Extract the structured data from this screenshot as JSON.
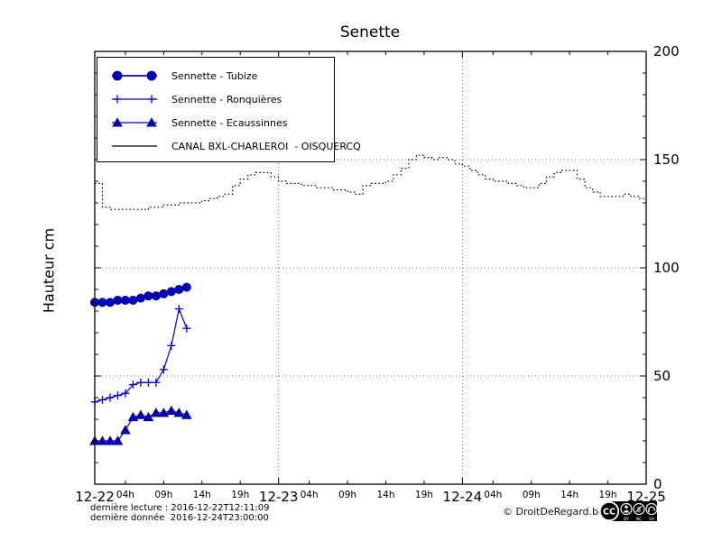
{
  "chart_data": {
    "type": "line",
    "title": "Senette",
    "ylabel": "Hauteur cm",
    "ylim": [
      0,
      200
    ],
    "xlim_hours": [
      0,
      72
    ],
    "grid": true,
    "legend_position": "upper-left",
    "accent_blue": "#0000cc",
    "y_major_ticks": [
      0,
      50,
      100,
      150,
      200
    ],
    "y_minor_step": 10,
    "grid_y_values": [
      50,
      100,
      150
    ],
    "grid_x_hours": [
      24,
      48
    ],
    "x_day_ticks": [
      {
        "label": "12-22",
        "hour": 0
      },
      {
        "label": "12-23",
        "hour": 24
      },
      {
        "label": "12-24",
        "hour": 48
      },
      {
        "label": "12-25",
        "hour": 72
      }
    ],
    "x_hour_ticks": [
      {
        "label": "04h",
        "hour": 4
      },
      {
        "label": "09h",
        "hour": 9
      },
      {
        "label": "14h",
        "hour": 14
      },
      {
        "label": "19h",
        "hour": 19
      },
      {
        "label": "04h",
        "hour": 28
      },
      {
        "label": "09h",
        "hour": 33
      },
      {
        "label": "14h",
        "hour": 38
      },
      {
        "label": "19h",
        "hour": 43
      },
      {
        "label": "04h",
        "hour": 52
      },
      {
        "label": "09h",
        "hour": 57
      },
      {
        "label": "14h",
        "hour": 62
      },
      {
        "label": "19h",
        "hour": 67
      }
    ],
    "series": [
      {
        "name": "Sennette - Tubize",
        "marker": "circle",
        "line": "solid",
        "step": false,
        "color": "#0000cc",
        "hours": [
          0,
          1,
          2,
          3,
          4,
          5,
          6,
          7,
          8,
          9,
          10,
          11,
          12
        ],
        "values": [
          84,
          84,
          84,
          85,
          85,
          85,
          86,
          87,
          87,
          88,
          89,
          90,
          91
        ]
      },
      {
        "name": "Sennette - Ronquières",
        "marker": "plus",
        "line": "solid",
        "step": false,
        "color": "#0000cc",
        "hours": [
          0,
          1,
          2,
          3,
          4,
          5,
          6,
          7,
          8,
          9,
          10,
          11,
          12
        ],
        "values": [
          38,
          39,
          40,
          41,
          42,
          46,
          47,
          47,
          47,
          53,
          64,
          81,
          72
        ]
      },
      {
        "name": "Sennette - Ecaussinnes",
        "marker": "triangle",
        "line": "solid",
        "step": false,
        "color": "#0000cc",
        "hours": [
          0,
          1,
          2,
          3,
          4,
          5,
          6,
          7,
          8,
          9,
          10,
          11,
          12
        ],
        "values": [
          20,
          20,
          20,
          20,
          25,
          31,
          32,
          31,
          33,
          33,
          34,
          33,
          32
        ]
      },
      {
        "name": "CANAL BXL-CHARLEROI  - OISQUERCQ",
        "marker": "none",
        "line": "dotted",
        "step": true,
        "color": "#000000",
        "hours": [
          0,
          1,
          2,
          3,
          4,
          5,
          6,
          7,
          8,
          9,
          10,
          11,
          12,
          13,
          14,
          15,
          16,
          17,
          18,
          19,
          20,
          21,
          22,
          23,
          24,
          25,
          26,
          27,
          28,
          29,
          30,
          31,
          32,
          33,
          34,
          35,
          36,
          37,
          38,
          39,
          40,
          41,
          42,
          43,
          44,
          45,
          46,
          47,
          48,
          49,
          50,
          51,
          52,
          53,
          54,
          55,
          56,
          57,
          58,
          59,
          60,
          61,
          62,
          63,
          64,
          65,
          66,
          67,
          68,
          69,
          70,
          71,
          72
        ],
        "values": [
          139,
          128,
          127,
          127,
          127,
          127,
          127,
          128,
          128,
          129,
          129,
          130,
          130,
          130,
          131,
          132,
          133,
          134,
          138,
          141,
          143,
          144,
          144,
          142,
          140,
          139,
          139,
          138,
          138,
          137,
          137,
          136,
          136,
          135,
          134,
          138,
          139,
          139,
          140,
          143,
          146,
          150,
          152,
          151,
          150,
          151,
          150,
          148,
          147,
          145,
          143,
          141,
          140,
          140,
          139,
          138,
          137,
          137,
          139,
          142,
          144,
          145,
          145,
          141,
          137,
          135,
          133,
          133,
          133,
          134,
          133,
          132,
          131
        ]
      }
    ]
  },
  "footer": {
    "last_reading": "dernière lecture : 2016-12-22T12:11:09",
    "last_data": "dernière donnée  2016-12-24T23:00:00",
    "copyright": "© DroitDeRegard.be",
    "cc_badge_labels": [
      "BY",
      "NC",
      "SA"
    ],
    "cc_logo_text": "CC"
  }
}
